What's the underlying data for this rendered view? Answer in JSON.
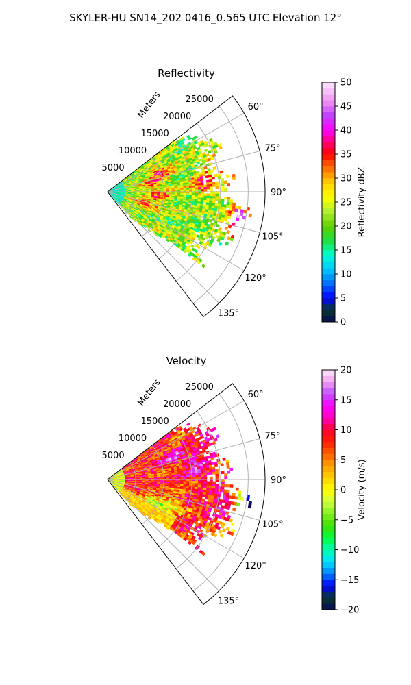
{
  "figure": {
    "title": "SKYLER-HU  SN14_202  0416_0.565 UTC Elevation 12°"
  },
  "chart_data": [
    {
      "type": "heatmap",
      "projection": "polar-sector",
      "title": "Reflectivity",
      "range_label": "Meters",
      "range_ticks": [
        5000,
        10000,
        15000,
        20000,
        25000
      ],
      "range_tick_labels": [
        "5000",
        "10000",
        "15000",
        "20000",
        "25000"
      ],
      "range_max": 28000,
      "theta_range_deg": [
        52.5,
        142.5
      ],
      "theta_ticks_deg": [
        60,
        75,
        90,
        105,
        120,
        135
      ],
      "theta_tick_labels": [
        "60°",
        "75°",
        "90°",
        "105°",
        "120°",
        "135°"
      ],
      "grid": true,
      "colorbar": {
        "label": "Reflectivity dBZ",
        "vmin": 0,
        "vmax": 50,
        "ticks": [
          0,
          5,
          10,
          15,
          20,
          25,
          30,
          35,
          40,
          45,
          50
        ],
        "tick_labels": [
          "0",
          "5",
          "10",
          "15",
          "20",
          "25",
          "30",
          "35",
          "40",
          "45",
          "50"
        ],
        "colormap": [
          [
            0,
            "#0a0a5a"
          ],
          [
            2.5,
            "#0a3a2a"
          ],
          [
            5,
            "#0000ff"
          ],
          [
            8,
            "#0070ff"
          ],
          [
            11,
            "#00c8ff"
          ],
          [
            14,
            "#00ffd0"
          ],
          [
            17,
            "#20e040"
          ],
          [
            20,
            "#60d000"
          ],
          [
            23,
            "#b0f030"
          ],
          [
            26,
            "#ffff00"
          ],
          [
            29,
            "#ffd000"
          ],
          [
            31,
            "#ff9000"
          ],
          [
            33,
            "#ff5000"
          ],
          [
            35,
            "#ff0000"
          ],
          [
            37,
            "#ff0060"
          ],
          [
            40,
            "#ff00ff"
          ],
          [
            43,
            "#c040ff"
          ],
          [
            46,
            "#f090f0"
          ],
          [
            50,
            "#ffe8ff"
          ]
        ]
      },
      "field": {
        "base": 22,
        "noise": 7,
        "cells": [
          {
            "theta": 70,
            "r": 10000,
            "amp": 13
          },
          {
            "theta": 80,
            "r": 8000,
            "amp": 12
          },
          {
            "theta": 95,
            "r": 9000,
            "amp": 12
          },
          {
            "theta": 108,
            "r": 7000,
            "amp": 12
          },
          {
            "theta": 84,
            "r": 17000,
            "amp": 14
          },
          {
            "theta": 100,
            "r": 24000,
            "amp": 17
          },
          {
            "theta": 107,
            "r": 25000,
            "amp": 15
          },
          {
            "theta": 76,
            "r": 21000,
            "amp": 12
          },
          {
            "theta": 88,
            "r": 23000,
            "amp": 11
          }
        ]
      }
    },
    {
      "type": "heatmap",
      "projection": "polar-sector",
      "title": "Velocity",
      "range_label": "Meters",
      "range_ticks": [
        5000,
        10000,
        15000,
        20000,
        25000
      ],
      "range_tick_labels": [
        "5000",
        "10000",
        "15000",
        "20000",
        "25000"
      ],
      "range_max": 28000,
      "theta_range_deg": [
        52.5,
        142.5
      ],
      "theta_ticks_deg": [
        60,
        75,
        90,
        105,
        120,
        135
      ],
      "theta_tick_labels": [
        "60°",
        "75°",
        "90°",
        "105°",
        "120°",
        "135°"
      ],
      "grid": true,
      "colorbar": {
        "label": "Velocity (m/s)",
        "vmin": -20,
        "vmax": 20,
        "ticks": [
          -20,
          -15,
          -10,
          -5,
          0,
          5,
          10,
          15,
          20
        ],
        "tick_labels": [
          "−20",
          "−15",
          "−10",
          "−5",
          "0",
          "5",
          "10",
          "15",
          "20"
        ],
        "colormap": [
          [
            -20,
            "#0a0a5a"
          ],
          [
            -18,
            "#0a3a2a"
          ],
          [
            -16,
            "#0000ff"
          ],
          [
            -14,
            "#0080ff"
          ],
          [
            -12,
            "#00e0ff"
          ],
          [
            -10,
            "#00ffb0"
          ],
          [
            -8,
            "#00ff40"
          ],
          [
            -6,
            "#40e000"
          ],
          [
            -4,
            "#80f020"
          ],
          [
            -2,
            "#d0ff40"
          ],
          [
            0,
            "#ffff00"
          ],
          [
            2,
            "#ffd000"
          ],
          [
            4,
            "#ffa000"
          ],
          [
            6,
            "#ff6000"
          ],
          [
            8,
            "#ff2000"
          ],
          [
            10,
            "#ff0030"
          ],
          [
            12,
            "#ff00c0"
          ],
          [
            14,
            "#ff00ff"
          ],
          [
            16,
            "#c050ff"
          ],
          [
            18,
            "#f0a0f0"
          ],
          [
            20,
            "#ffe8ff"
          ]
        ]
      },
      "field": {
        "base": 8,
        "noise": 5,
        "cells": [
          {
            "theta": 70,
            "r": 12000,
            "amp": 5
          },
          {
            "theta": 80,
            "r": 16000,
            "amp": 6
          },
          {
            "theta": 110,
            "r": 12000,
            "amp": -9
          },
          {
            "theta": 116,
            "r": 9000,
            "amp": -11
          },
          {
            "theta": 100,
            "r": 21000,
            "amp": 5
          },
          {
            "theta": 103,
            "r": 25500,
            "amp": -22
          },
          {
            "theta": 98,
            "r": 26500,
            "amp": -20
          },
          {
            "theta": 64,
            "r": 20000,
            "amp": 4
          }
        ]
      }
    }
  ]
}
